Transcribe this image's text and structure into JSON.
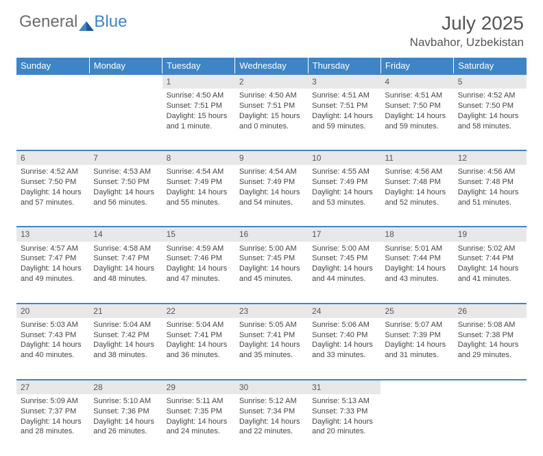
{
  "logo": {
    "text_general": "General",
    "text_blue": "Blue"
  },
  "title": "July 2025",
  "location": "Navbahor, Uzbekistan",
  "colors": {
    "header_bg": "#3d85c6",
    "header_text": "#ffffff",
    "daynum_bg": "#e8e8e8",
    "text": "#444444",
    "border": "#3d85c6"
  },
  "day_headers": [
    "Sunday",
    "Monday",
    "Tuesday",
    "Wednesday",
    "Thursday",
    "Friday",
    "Saturday"
  ],
  "weeks": [
    [
      null,
      null,
      {
        "n": "1",
        "sunrise": "Sunrise: 4:50 AM",
        "sunset": "Sunset: 7:51 PM",
        "day1": "Daylight: 15 hours",
        "day2": "and 1 minute."
      },
      {
        "n": "2",
        "sunrise": "Sunrise: 4:50 AM",
        "sunset": "Sunset: 7:51 PM",
        "day1": "Daylight: 15 hours",
        "day2": "and 0 minutes."
      },
      {
        "n": "3",
        "sunrise": "Sunrise: 4:51 AM",
        "sunset": "Sunset: 7:51 PM",
        "day1": "Daylight: 14 hours",
        "day2": "and 59 minutes."
      },
      {
        "n": "4",
        "sunrise": "Sunrise: 4:51 AM",
        "sunset": "Sunset: 7:50 PM",
        "day1": "Daylight: 14 hours",
        "day2": "and 59 minutes."
      },
      {
        "n": "5",
        "sunrise": "Sunrise: 4:52 AM",
        "sunset": "Sunset: 7:50 PM",
        "day1": "Daylight: 14 hours",
        "day2": "and 58 minutes."
      }
    ],
    [
      {
        "n": "6",
        "sunrise": "Sunrise: 4:52 AM",
        "sunset": "Sunset: 7:50 PM",
        "day1": "Daylight: 14 hours",
        "day2": "and 57 minutes."
      },
      {
        "n": "7",
        "sunrise": "Sunrise: 4:53 AM",
        "sunset": "Sunset: 7:50 PM",
        "day1": "Daylight: 14 hours",
        "day2": "and 56 minutes."
      },
      {
        "n": "8",
        "sunrise": "Sunrise: 4:54 AM",
        "sunset": "Sunset: 7:49 PM",
        "day1": "Daylight: 14 hours",
        "day2": "and 55 minutes."
      },
      {
        "n": "9",
        "sunrise": "Sunrise: 4:54 AM",
        "sunset": "Sunset: 7:49 PM",
        "day1": "Daylight: 14 hours",
        "day2": "and 54 minutes."
      },
      {
        "n": "10",
        "sunrise": "Sunrise: 4:55 AM",
        "sunset": "Sunset: 7:49 PM",
        "day1": "Daylight: 14 hours",
        "day2": "and 53 minutes."
      },
      {
        "n": "11",
        "sunrise": "Sunrise: 4:56 AM",
        "sunset": "Sunset: 7:48 PM",
        "day1": "Daylight: 14 hours",
        "day2": "and 52 minutes."
      },
      {
        "n": "12",
        "sunrise": "Sunrise: 4:56 AM",
        "sunset": "Sunset: 7:48 PM",
        "day1": "Daylight: 14 hours",
        "day2": "and 51 minutes."
      }
    ],
    [
      {
        "n": "13",
        "sunrise": "Sunrise: 4:57 AM",
        "sunset": "Sunset: 7:47 PM",
        "day1": "Daylight: 14 hours",
        "day2": "and 49 minutes."
      },
      {
        "n": "14",
        "sunrise": "Sunrise: 4:58 AM",
        "sunset": "Sunset: 7:47 PM",
        "day1": "Daylight: 14 hours",
        "day2": "and 48 minutes."
      },
      {
        "n": "15",
        "sunrise": "Sunrise: 4:59 AM",
        "sunset": "Sunset: 7:46 PM",
        "day1": "Daylight: 14 hours",
        "day2": "and 47 minutes."
      },
      {
        "n": "16",
        "sunrise": "Sunrise: 5:00 AM",
        "sunset": "Sunset: 7:45 PM",
        "day1": "Daylight: 14 hours",
        "day2": "and 45 minutes."
      },
      {
        "n": "17",
        "sunrise": "Sunrise: 5:00 AM",
        "sunset": "Sunset: 7:45 PM",
        "day1": "Daylight: 14 hours",
        "day2": "and 44 minutes."
      },
      {
        "n": "18",
        "sunrise": "Sunrise: 5:01 AM",
        "sunset": "Sunset: 7:44 PM",
        "day1": "Daylight: 14 hours",
        "day2": "and 43 minutes."
      },
      {
        "n": "19",
        "sunrise": "Sunrise: 5:02 AM",
        "sunset": "Sunset: 7:44 PM",
        "day1": "Daylight: 14 hours",
        "day2": "and 41 minutes."
      }
    ],
    [
      {
        "n": "20",
        "sunrise": "Sunrise: 5:03 AM",
        "sunset": "Sunset: 7:43 PM",
        "day1": "Daylight: 14 hours",
        "day2": "and 40 minutes."
      },
      {
        "n": "21",
        "sunrise": "Sunrise: 5:04 AM",
        "sunset": "Sunset: 7:42 PM",
        "day1": "Daylight: 14 hours",
        "day2": "and 38 minutes."
      },
      {
        "n": "22",
        "sunrise": "Sunrise: 5:04 AM",
        "sunset": "Sunset: 7:41 PM",
        "day1": "Daylight: 14 hours",
        "day2": "and 36 minutes."
      },
      {
        "n": "23",
        "sunrise": "Sunrise: 5:05 AM",
        "sunset": "Sunset: 7:41 PM",
        "day1": "Daylight: 14 hours",
        "day2": "and 35 minutes."
      },
      {
        "n": "24",
        "sunrise": "Sunrise: 5:06 AM",
        "sunset": "Sunset: 7:40 PM",
        "day1": "Daylight: 14 hours",
        "day2": "and 33 minutes."
      },
      {
        "n": "25",
        "sunrise": "Sunrise: 5:07 AM",
        "sunset": "Sunset: 7:39 PM",
        "day1": "Daylight: 14 hours",
        "day2": "and 31 minutes."
      },
      {
        "n": "26",
        "sunrise": "Sunrise: 5:08 AM",
        "sunset": "Sunset: 7:38 PM",
        "day1": "Daylight: 14 hours",
        "day2": "and 29 minutes."
      }
    ],
    [
      {
        "n": "27",
        "sunrise": "Sunrise: 5:09 AM",
        "sunset": "Sunset: 7:37 PM",
        "day1": "Daylight: 14 hours",
        "day2": "and 28 minutes."
      },
      {
        "n": "28",
        "sunrise": "Sunrise: 5:10 AM",
        "sunset": "Sunset: 7:36 PM",
        "day1": "Daylight: 14 hours",
        "day2": "and 26 minutes."
      },
      {
        "n": "29",
        "sunrise": "Sunrise: 5:11 AM",
        "sunset": "Sunset: 7:35 PM",
        "day1": "Daylight: 14 hours",
        "day2": "and 24 minutes."
      },
      {
        "n": "30",
        "sunrise": "Sunrise: 5:12 AM",
        "sunset": "Sunset: 7:34 PM",
        "day1": "Daylight: 14 hours",
        "day2": "and 22 minutes."
      },
      {
        "n": "31",
        "sunrise": "Sunrise: 5:13 AM",
        "sunset": "Sunset: 7:33 PM",
        "day1": "Daylight: 14 hours",
        "day2": "and 20 minutes."
      },
      null,
      null
    ]
  ]
}
